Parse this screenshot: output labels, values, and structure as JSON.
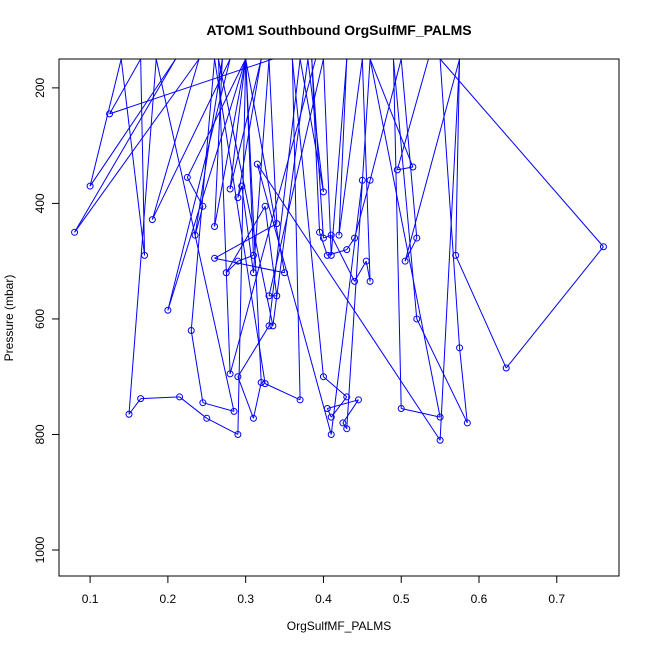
{
  "chart_data": {
    "type": "line",
    "title": "ATOM1 Southbound OrgSulfMF_PALMS",
    "xlabel": "OrgSulfMF_PALMS",
    "ylabel": "Pressure (mbar)",
    "xlim": [
      0.06,
      0.78
    ],
    "ylim": [
      1045,
      150
    ],
    "y_reversed": true,
    "x_ticks": [
      0.1,
      0.2,
      0.3,
      0.4,
      0.5,
      0.6,
      0.7
    ],
    "x_tick_labels": [
      "0.1",
      "0.2",
      "0.3",
      "0.4",
      "0.5",
      "0.6",
      "0.7"
    ],
    "y_ticks": [
      200,
      400,
      600,
      800,
      1000
    ],
    "y_tick_labels": [
      "200",
      "400",
      "600",
      "800",
      "1000"
    ],
    "grid": false,
    "legend": "none",
    "colors": {
      "series": "#0000ff",
      "axis": "#000000",
      "background": "#ffffff"
    },
    "series": [
      {
        "marker": "open-circle",
        "line": true,
        "x": [
          0.335,
          0.125,
          0.165,
          0.17,
          0.14,
          0.1,
          0.21,
          0.08,
          0.24,
          0.18,
          0.28,
          0.2,
          0.3,
          0.225,
          0.245,
          0.235,
          0.27,
          0.26,
          0.3,
          0.28,
          0.32,
          0.29,
          0.295,
          0.31,
          0.33,
          0.34,
          0.26,
          0.35,
          0.3,
          0.31,
          0.29,
          0.275,
          0.325,
          0.34,
          0.33,
          0.4,
          0.41,
          0.43,
          0.42,
          0.45,
          0.46,
          0.455,
          0.44,
          0.41,
          0.4,
          0.385,
          0.395,
          0.405,
          0.43,
          0.44,
          0.46,
          0.5,
          0.52,
          0.505,
          0.575,
          0.57,
          0.635,
          0.76,
          0.55,
          0.575,
          0.585,
          0.52,
          0.49,
          0.5,
          0.55,
          0.46,
          0.43,
          0.425,
          0.445,
          0.405,
          0.41,
          0.43,
          0.4,
          0.36,
          0.37,
          0.325,
          0.26,
          0.23,
          0.245,
          0.285,
          0.185,
          0.15,
          0.165,
          0.215,
          0.25,
          0.29,
          0.3,
          0.32,
          0.31,
          0.29,
          0.33,
          0.37,
          0.4,
          0.38,
          0.335,
          0.265,
          0.28,
          0.39,
          0.46,
          0.515,
          0.495,
          0.535,
          0.575,
          0.55,
          0.315,
          0.41,
          0.45
        ],
        "y": [
          150,
          245,
          150,
          490,
          150,
          370,
          150,
          450,
          150,
          428,
          150,
          585,
          150,
          355,
          405,
          455,
          150,
          440,
          150,
          375,
          150,
          390,
          370,
          520,
          150,
          435,
          495,
          520,
          150,
          490,
          500,
          520,
          405,
          560,
          560,
          150,
          490,
          150,
          455,
          150,
          535,
          500,
          535,
          455,
          460,
          150,
          450,
          490,
          480,
          460,
          360,
          150,
          460,
          500,
          150,
          490,
          685,
          475,
          150,
          650,
          780,
          600,
          150,
          755,
          770,
          150,
          790,
          780,
          740,
          755,
          770,
          735,
          700,
          150,
          740,
          712,
          150,
          620,
          745,
          760,
          150,
          765,
          738,
          735,
          772,
          800,
          150,
          710,
          772,
          700,
          612,
          150,
          380,
          150,
          612,
          150,
          695,
          150,
          150,
          337,
          342,
          150,
          150,
          810,
          332,
          800,
          360
        ]
      }
    ]
  }
}
